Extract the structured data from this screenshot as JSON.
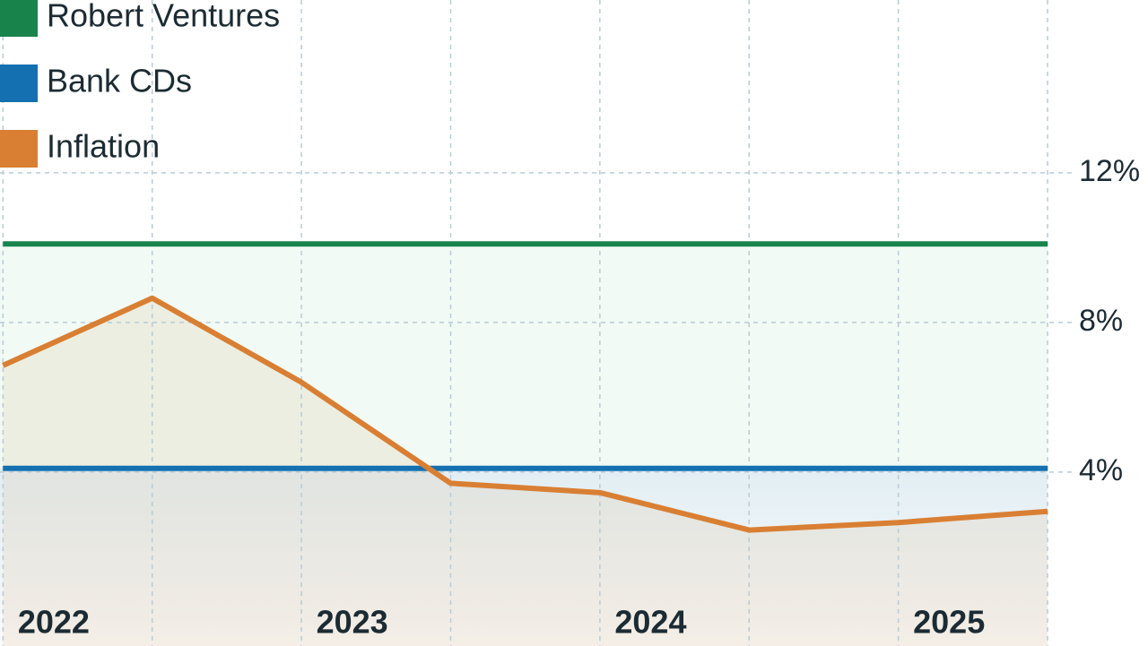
{
  "chart_data": {
    "type": "line",
    "x": [
      2021.83,
      2022.33,
      2022.83,
      2023.33,
      2023.83,
      2024.33,
      2024.83,
      2025.33
    ],
    "series": [
      {
        "name": "Robert Ventures",
        "color": "#18844c",
        "values": [
          10.1,
          10.1,
          10.1,
          10.1,
          10.1,
          10.1,
          10.1,
          10.1
        ]
      },
      {
        "name": "Bank CDs",
        "color": "#1470b0",
        "values": [
          4.1,
          4.1,
          4.1,
          4.1,
          4.1,
          4.1,
          4.1,
          4.1
        ]
      },
      {
        "name": "Inflation",
        "color": "#d97f33",
        "values": [
          6.85,
          8.65,
          6.4,
          3.7,
          3.45,
          2.45,
          2.65,
          2.95
        ]
      }
    ],
    "xlim": [
      2021.82,
      2025.33
    ],
    "xticks": [
      2022,
      2023,
      2024,
      2025
    ],
    "ylim": [
      -0.65,
      16.62
    ],
    "yticks": [
      {
        "value": 4,
        "label": "4%"
      },
      {
        "value": 8,
        "label": "8%"
      },
      {
        "value": 12,
        "label": "12%"
      }
    ],
    "grid": true,
    "legend": "top-left"
  }
}
